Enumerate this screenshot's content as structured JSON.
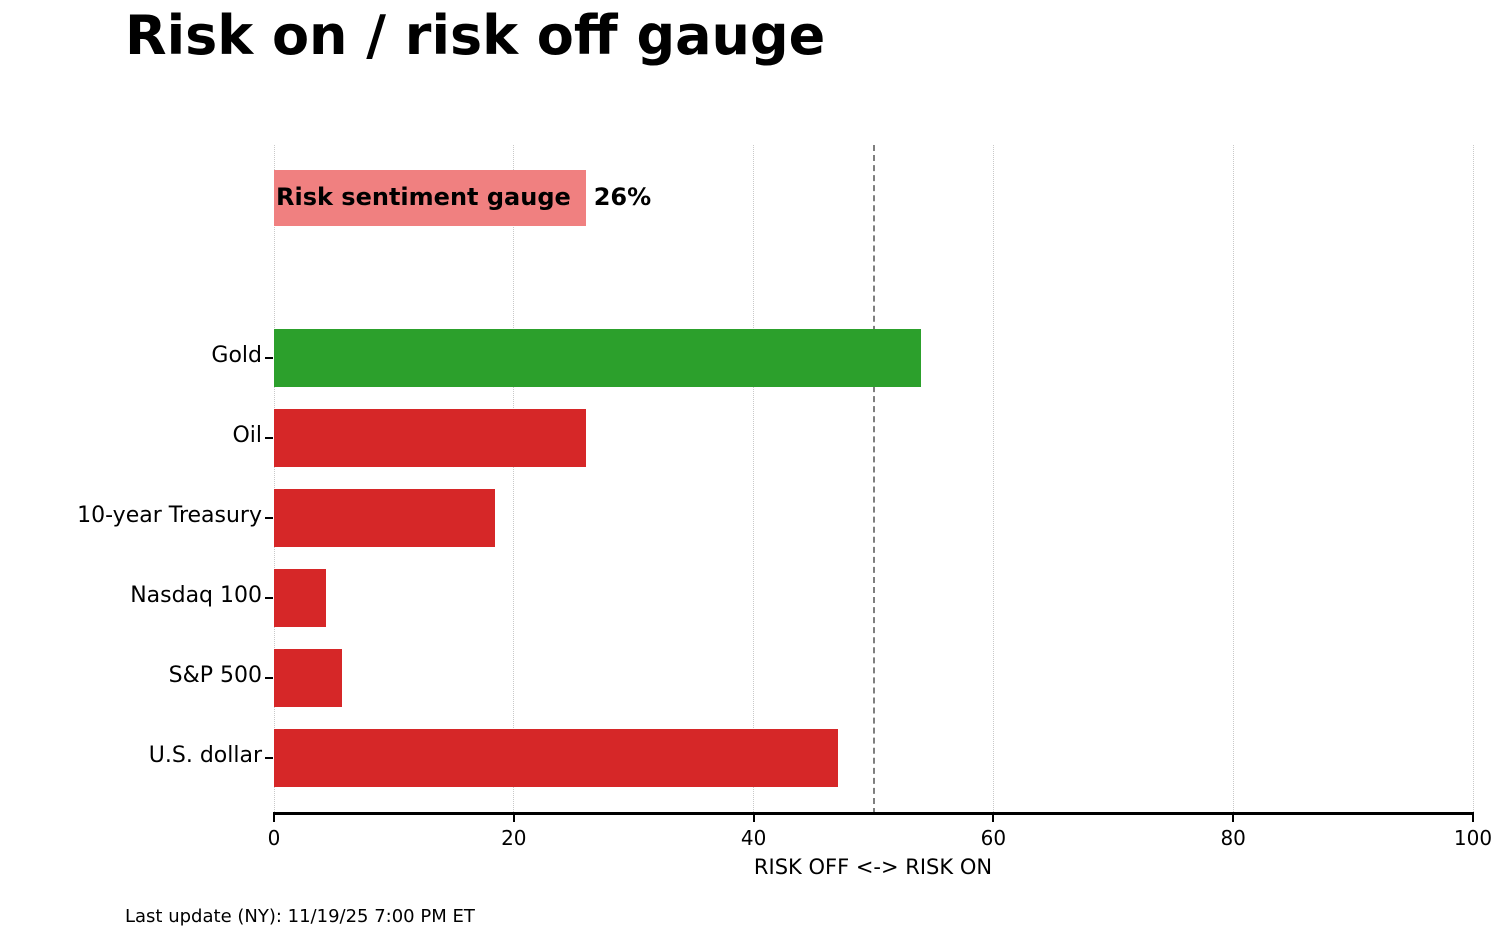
{
  "title": "Risk on / risk off gauge",
  "footer": "Last update (NY): 11/19/25 7:00 PM ET",
  "colors": {
    "risk_off_red": "#d62728",
    "risk_on_green": "#2ca02c",
    "gauge_pink": "#f08080",
    "gridline": "#c9c9c9",
    "threshold_gray": "#7f7f7f",
    "text": "#000000"
  },
  "chart_data": {
    "type": "bar",
    "orientation": "horizontal",
    "title": "Risk on / risk off gauge",
    "xlabel": "RISK OFF <-> RISK ON",
    "xlim": [
      0,
      100
    ],
    "xticks": [
      0,
      20,
      40,
      60,
      80,
      100
    ],
    "grid": "vertical dotted gridlines at each x tick",
    "legend": "none",
    "threshold_line": {
      "x": 50,
      "style": "dashed",
      "color": "#7f7f7f"
    },
    "gauge_row": {
      "label": "Risk sentiment gauge",
      "value": 26,
      "value_label": "26%",
      "color": "#f08080"
    },
    "categories": [
      "Gold",
      "Oil",
      "10-year Treasury",
      "Nasdaq 100",
      "S&P 500",
      "U.S. dollar"
    ],
    "values": [
      54,
      26,
      18.4,
      4.3,
      5.7,
      47
    ],
    "bar_colors": [
      "#2ca02c",
      "#d62728",
      "#d62728",
      "#d62728",
      "#d62728",
      "#d62728"
    ]
  }
}
